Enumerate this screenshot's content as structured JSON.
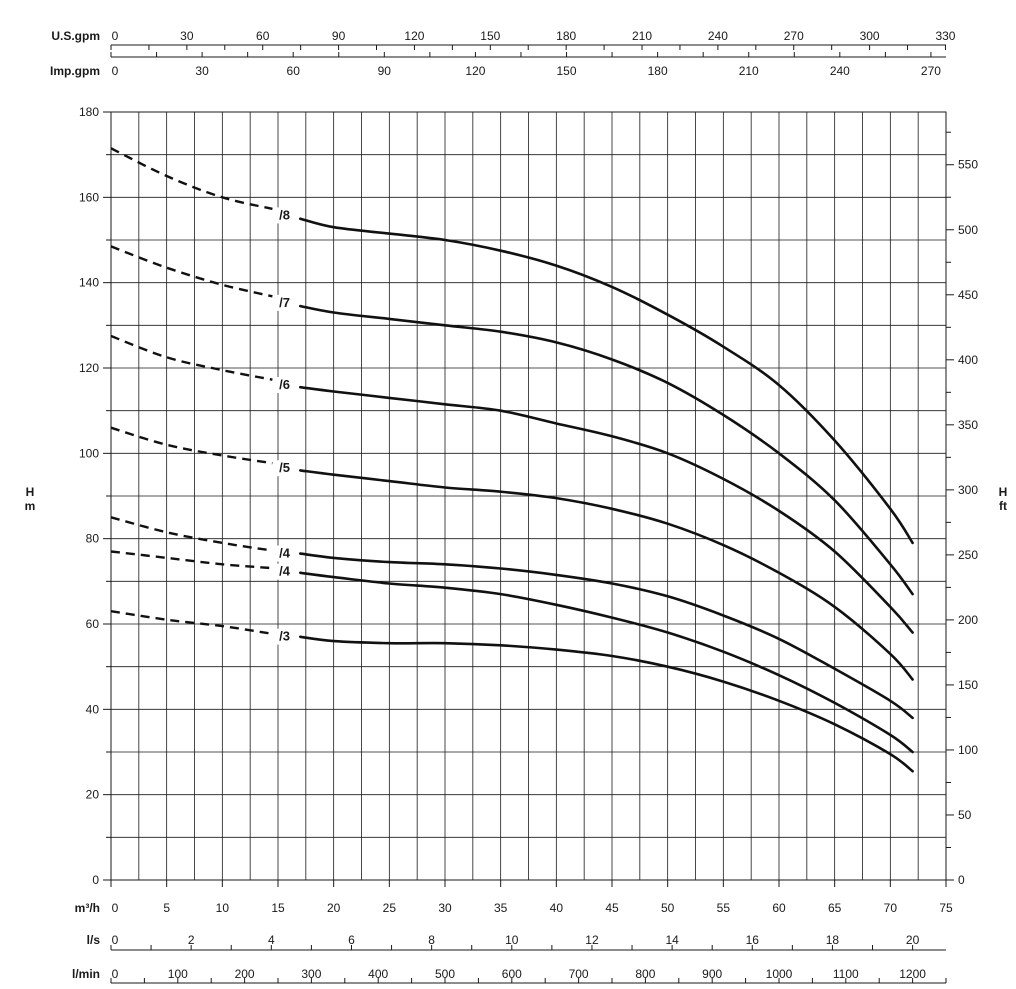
{
  "chart_data": {
    "type": "line",
    "title": "",
    "xlabel": "m³/h",
    "ylabel_left": [
      "H",
      "m"
    ],
    "ylabel_right": [
      "H",
      "ft"
    ],
    "xlim": [
      0,
      75
    ],
    "ylim": [
      0,
      180
    ],
    "grid": true,
    "x_ticks": [
      0,
      5,
      10,
      15,
      20,
      25,
      30,
      35,
      40,
      45,
      50,
      55,
      60,
      65,
      70,
      75
    ],
    "y_ticks": [
      0,
      20,
      40,
      60,
      80,
      100,
      120,
      140,
      160,
      180
    ],
    "right_axis": {
      "unit": "ft",
      "ticks": [
        0,
        50,
        100,
        150,
        200,
        250,
        300,
        350,
        400,
        450,
        500,
        550
      ]
    },
    "top_axes": [
      {
        "unit": "U.S.gpm",
        "ticks": [
          0,
          30,
          60,
          90,
          120,
          150,
          180,
          210,
          240,
          270,
          300,
          330
        ]
      },
      {
        "unit": "Imp.gpm",
        "ticks": [
          0,
          30,
          60,
          90,
          120,
          150,
          180,
          210,
          240,
          270
        ]
      }
    ],
    "bottom_axes": [
      {
        "unit": "l/s",
        "ticks": [
          0,
          2,
          4,
          6,
          8,
          10,
          12,
          14,
          16,
          18,
          20
        ]
      },
      {
        "unit": "l/min",
        "ticks": [
          0,
          100,
          200,
          300,
          400,
          500,
          600,
          700,
          800,
          900,
          1000,
          1100,
          1200
        ]
      }
    ],
    "dashed_until_x": 17,
    "label_x": 16,
    "series": [
      {
        "name": "/8",
        "x": [
          0,
          5,
          10,
          15,
          17,
          20,
          25,
          30,
          35,
          40,
          45,
          50,
          55,
          60,
          65,
          70,
          72
        ],
        "y": [
          171.5,
          165,
          160,
          157,
          155,
          153,
          151.5,
          150,
          147.5,
          144,
          139,
          132.5,
          125,
          116,
          103,
          87,
          79
        ]
      },
      {
        "name": "/7",
        "x": [
          0,
          5,
          10,
          15,
          17,
          20,
          25,
          30,
          35,
          40,
          45,
          50,
          55,
          60,
          65,
          70,
          72
        ],
        "y": [
          148.5,
          143.5,
          139.5,
          136.5,
          134.5,
          133,
          131.5,
          130,
          128.5,
          126,
          122,
          116.5,
          109,
          100,
          89,
          74,
          67
        ]
      },
      {
        "name": "/6",
        "x": [
          0,
          5,
          10,
          15,
          17,
          20,
          25,
          30,
          35,
          40,
          45,
          50,
          55,
          60,
          65,
          70,
          72
        ],
        "y": [
          127.5,
          122.5,
          119.5,
          117,
          115.5,
          114.5,
          113,
          111.5,
          110,
          107,
          104,
          100,
          94,
          86.5,
          77,
          64,
          58
        ]
      },
      {
        "name": "/5",
        "x": [
          0,
          5,
          10,
          15,
          17,
          20,
          25,
          30,
          35,
          40,
          45,
          50,
          55,
          60,
          65,
          70,
          72
        ],
        "y": [
          106,
          102,
          99.5,
          97.5,
          96,
          95,
          93.5,
          92,
          91,
          89.5,
          87,
          83.5,
          78.5,
          72,
          64,
          53,
          47
        ]
      },
      {
        "name": "/4",
        "x": [
          0,
          5,
          10,
          15,
          17,
          20,
          25,
          30,
          35,
          40,
          45,
          50,
          55,
          60,
          65,
          70,
          72
        ],
        "y": [
          85,
          81.5,
          79,
          77,
          76.5,
          75.5,
          74.5,
          74,
          73,
          71.5,
          69.5,
          66.5,
          62,
          56.5,
          49.5,
          42,
          38
        ]
      },
      {
        "name": "/4",
        "x": [
          0,
          5,
          10,
          15,
          17,
          20,
          25,
          30,
          35,
          40,
          45,
          50,
          55,
          60,
          65,
          70,
          72
        ],
        "y": [
          77,
          75.5,
          74,
          73,
          72,
          71,
          69.5,
          68.5,
          67,
          64.5,
          61.5,
          58,
          53.5,
          48,
          41.5,
          34,
          30
        ]
      },
      {
        "name": "/3",
        "x": [
          0,
          5,
          10,
          15,
          17,
          20,
          25,
          30,
          35,
          40,
          45,
          50,
          55,
          60,
          65,
          70,
          72
        ],
        "y": [
          63,
          61,
          59.5,
          57.5,
          57,
          56,
          55.5,
          55.5,
          55,
          54,
          52.5,
          50,
          46.5,
          42,
          36.5,
          29.5,
          25.5
        ]
      }
    ]
  }
}
